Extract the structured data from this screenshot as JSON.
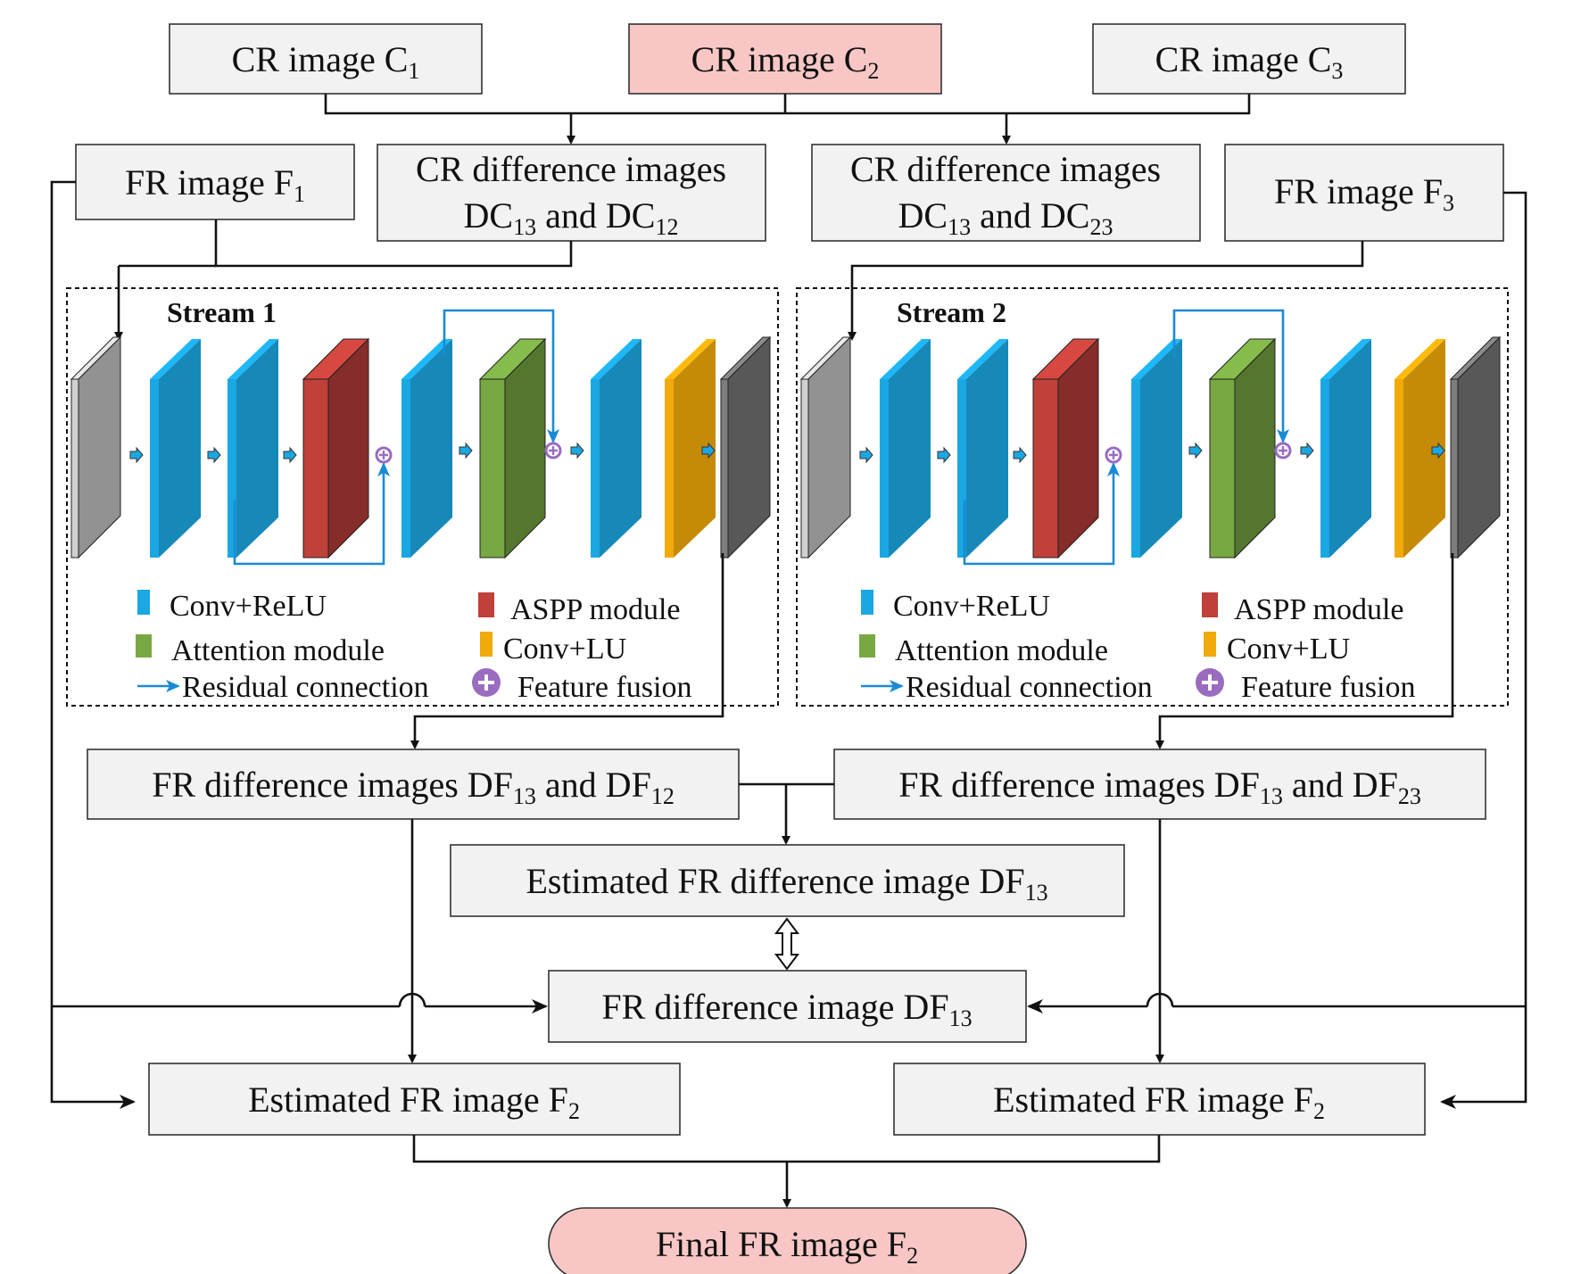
{
  "boxes": {
    "cr1": {
      "base": "CR image C",
      "sub": "1"
    },
    "cr2": {
      "base": "CR image C",
      "sub": "2"
    },
    "cr3": {
      "base": "CR image C",
      "sub": "3"
    },
    "fr1": {
      "base": "FR image F",
      "sub": "1"
    },
    "fr3": {
      "base": "FR image F",
      "sub": "3"
    },
    "crd1": {
      "line1": "CR difference images",
      "a": "DC",
      "a_sub": "13",
      "mid": " and DC",
      "b_sub": "12"
    },
    "crd2": {
      "line1": "CR difference images",
      "a": "DC",
      "a_sub": "13",
      "mid": " and DC",
      "b_sub": "23"
    },
    "frd1": {
      "a": "FR difference images  DF",
      "a_sub": "13",
      "mid": " and DF",
      "b_sub": "12"
    },
    "frd2": {
      "a": "FR difference images  DF",
      "a_sub": "13",
      "mid": " and DF",
      "b_sub": "23"
    },
    "est_diff": {
      "base": "Estimated FR difference image DF",
      "sub": "13"
    },
    "fr_diff": {
      "base": "FR difference image DF",
      "sub": "13"
    },
    "est1": {
      "base": "Estimated FR image F",
      "sub": "2"
    },
    "est2": {
      "base": "Estimated FR image F",
      "sub": "2"
    },
    "final": {
      "base": "Final FR image F",
      "sub": "2"
    }
  },
  "streams": [
    "Stream 1",
    "Stream 2"
  ],
  "legend": {
    "conv_relu": "Conv+ReLU",
    "aspp": "ASPP module",
    "attention": "Attention module",
    "conv_lu": "Conv+LU",
    "residual": "Residual connection",
    "fusion": "Feature fusion"
  },
  "colors": {
    "conv_relu": "#1ba7e2",
    "aspp": "#c0403a",
    "attention": "#78a843",
    "conv_lu": "#f0aa0a",
    "input": "#d0d0d0",
    "output": "#7d7d7d",
    "residual": "#1a8ad4",
    "fusion": "#9a6cc0",
    "highlight": "#f8c7c5"
  }
}
